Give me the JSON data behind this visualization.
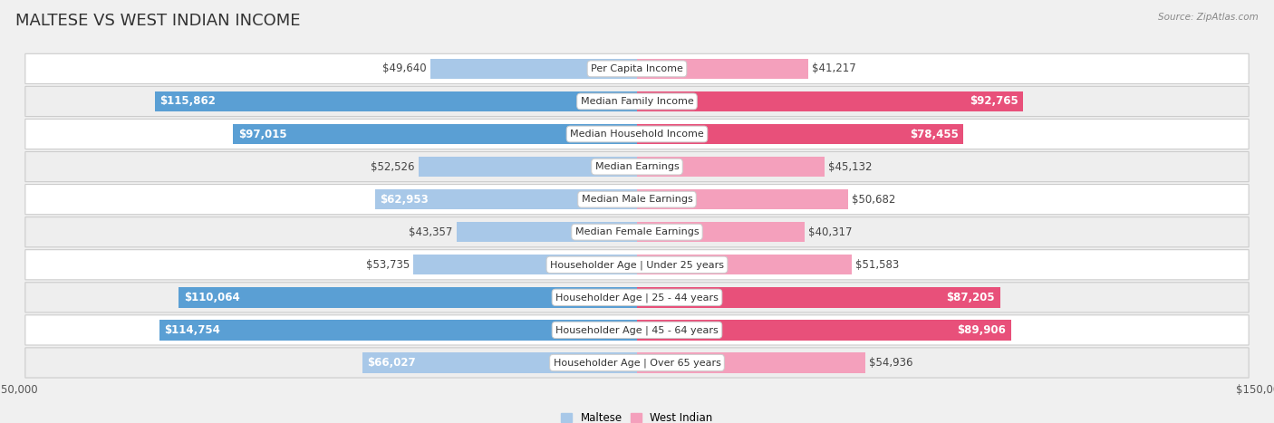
{
  "title": "MALTESE VS WEST INDIAN INCOME",
  "source": "Source: ZipAtlas.com",
  "categories": [
    "Per Capita Income",
    "Median Family Income",
    "Median Household Income",
    "Median Earnings",
    "Median Male Earnings",
    "Median Female Earnings",
    "Householder Age | Under 25 years",
    "Householder Age | 25 - 44 years",
    "Householder Age | 45 - 64 years",
    "Householder Age | Over 65 years"
  ],
  "maltese_values": [
    49640,
    115862,
    97015,
    52526,
    62953,
    43357,
    53735,
    110064,
    114754,
    66027
  ],
  "west_indian_values": [
    41217,
    92765,
    78455,
    45132,
    50682,
    40317,
    51583,
    87205,
    89906,
    54936
  ],
  "maltese_labels": [
    "$49,640",
    "$115,862",
    "$97,015",
    "$52,526",
    "$62,953",
    "$43,357",
    "$53,735",
    "$110,064",
    "$114,754",
    "$66,027"
  ],
  "west_indian_labels": [
    "$41,217",
    "$92,765",
    "$78,455",
    "$45,132",
    "$50,682",
    "$40,317",
    "$51,583",
    "$87,205",
    "$89,906",
    "$54,936"
  ],
  "maltese_color_light": "#a8c8e8",
  "maltese_color_dark": "#5a9fd4",
  "west_indian_color_light": "#f4a0bc",
  "west_indian_color_dark": "#e8507a",
  "max_value": 150000,
  "bar_height": 0.62,
  "bg_color": "#f0f0f0",
  "row_bg_odd": "#f7f7f7",
  "row_bg_even": "#e8e8e8",
  "title_fontsize": 13,
  "label_fontsize": 8.5,
  "category_fontsize": 8.0,
  "axis_label_fontsize": 8.5,
  "inside_threshold": 55000,
  "dark_threshold": 75000
}
